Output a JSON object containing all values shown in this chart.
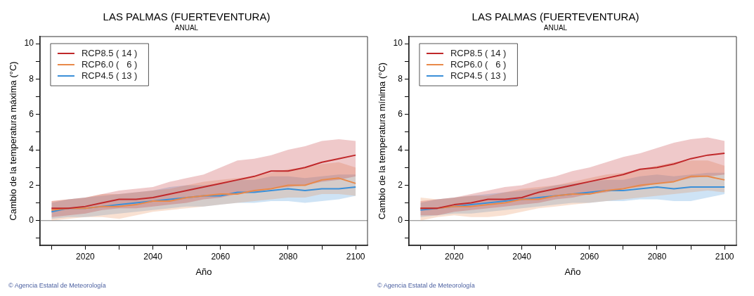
{
  "chart_data": [
    {
      "type": "line",
      "title": "LAS PALMAS (FUERTEVENTURA)",
      "subtitle": "ANUAL",
      "xlabel": "Año",
      "ylabel": "Cambio de la temperatura máxima (°C)",
      "x": [
        2010,
        2015,
        2020,
        2025,
        2030,
        2035,
        2040,
        2045,
        2050,
        2055,
        2060,
        2065,
        2070,
        2075,
        2080,
        2085,
        2090,
        2095,
        2100
      ],
      "series": [
        {
          "name": "RCP8.5 ( 14 )",
          "color": "#c0282a",
          "values": [
            0.7,
            0.7,
            0.8,
            1.0,
            1.2,
            1.2,
            1.3,
            1.5,
            1.7,
            1.9,
            2.1,
            2.3,
            2.5,
            2.8,
            2.8,
            3.0,
            3.3,
            3.5,
            3.7
          ],
          "lower": [
            0.2,
            0.3,
            0.4,
            0.6,
            0.7,
            0.7,
            0.8,
            0.9,
            1.0,
            1.2,
            1.3,
            1.5,
            1.6,
            1.8,
            1.9,
            2.0,
            2.2,
            2.3,
            2.5
          ],
          "upper": [
            1.1,
            1.2,
            1.3,
            1.5,
            1.7,
            1.8,
            1.9,
            2.2,
            2.4,
            2.6,
            3.0,
            3.4,
            3.5,
            3.7,
            4.0,
            4.2,
            4.5,
            4.6,
            4.5
          ]
        },
        {
          "name": "RCP6.0 (   6 )",
          "color": "#e8894a",
          "values": [
            0.6,
            0.7,
            0.7,
            0.8,
            0.8,
            0.9,
            1.1,
            1.1,
            1.3,
            1.4,
            1.5,
            1.5,
            1.7,
            1.8,
            2.0,
            2.0,
            2.3,
            2.4,
            2.1
          ],
          "lower": [
            0.0,
            0.1,
            0.2,
            0.2,
            0.1,
            0.3,
            0.5,
            0.6,
            0.7,
            0.8,
            0.9,
            1.0,
            1.1,
            1.2,
            1.3,
            1.3,
            1.5,
            1.5,
            1.4
          ],
          "upper": [
            1.1,
            1.2,
            1.3,
            1.5,
            1.5,
            1.6,
            1.7,
            1.8,
            2.0,
            2.2,
            2.3,
            2.4,
            2.5,
            2.7,
            2.9,
            3.0,
            3.2,
            3.3,
            3.0
          ]
        },
        {
          "name": "RCP4.5 ( 13 )",
          "color": "#3a8fd8",
          "values": [
            0.5,
            0.7,
            0.7,
            0.8,
            0.9,
            1.0,
            1.1,
            1.2,
            1.3,
            1.4,
            1.4,
            1.6,
            1.6,
            1.7,
            1.8,
            1.7,
            1.8,
            1.8,
            1.9
          ],
          "lower": [
            0.1,
            0.2,
            0.2,
            0.3,
            0.4,
            0.5,
            0.6,
            0.7,
            0.8,
            0.8,
            0.9,
            1.0,
            1.0,
            1.1,
            1.1,
            1.0,
            1.1,
            1.2,
            1.4
          ],
          "upper": [
            1.0,
            1.2,
            1.3,
            1.4,
            1.5,
            1.6,
            1.7,
            1.9,
            2.0,
            2.0,
            2.1,
            2.3,
            2.3,
            2.5,
            2.5,
            2.4,
            2.5,
            2.6,
            2.6
          ]
        }
      ],
      "xlim": [
        2006.6,
        2103.5
      ],
      "xticks": [
        {
          "value": 2010,
          "label": null
        },
        2020,
        {
          "value": 2030,
          "label": null
        },
        2040,
        {
          "value": 2050,
          "label": null
        },
        2060,
        {
          "value": 2070,
          "label": null
        },
        2080,
        {
          "value": 2090,
          "label": null
        },
        2100
      ],
      "ylim": [
        -1.4,
        10.4
      ],
      "yticks": [
        {
          "value": -1,
          "label": null
        },
        0,
        {
          "value": 1,
          "label": null
        },
        2,
        {
          "value": 3,
          "label": null
        },
        4,
        {
          "value": 5,
          "label": null
        },
        6,
        {
          "value": 7,
          "label": null
        },
        8,
        {
          "value": 9,
          "label": null
        },
        10
      ],
      "ref_lines": [
        {
          "axis": "y",
          "value": 0,
          "color": "#808080"
        }
      ],
      "legend": "top left",
      "grid": false,
      "marker": "none",
      "line_style": "solid",
      "annotations": [
        "© Agencia Estatal de Meteorología"
      ]
    },
    {
      "type": "line",
      "title": "LAS PALMAS (FUERTEVENTURA)",
      "subtitle": "ANUAL",
      "xlabel": "Año",
      "ylabel": "Cambio de la temperatura mínima (°C)",
      "x": [
        2010,
        2015,
        2020,
        2025,
        2030,
        2035,
        2040,
        2045,
        2050,
        2055,
        2060,
        2065,
        2070,
        2075,
        2080,
        2085,
        2090,
        2095,
        2100
      ],
      "series": [
        {
          "name": "RCP8.5 ( 14 )",
          "color": "#c0282a",
          "values": [
            0.7,
            0.7,
            0.9,
            1.0,
            1.2,
            1.2,
            1.3,
            1.6,
            1.8,
            2.0,
            2.2,
            2.4,
            2.6,
            2.9,
            3.0,
            3.2,
            3.5,
            3.7,
            3.8
          ],
          "lower": [
            0.3,
            0.3,
            0.5,
            0.6,
            0.7,
            0.8,
            0.9,
            1.0,
            1.2,
            1.3,
            1.5,
            1.6,
            1.8,
            1.9,
            2.1,
            2.2,
            2.4,
            2.5,
            2.6
          ],
          "upper": [
            1.1,
            1.2,
            1.3,
            1.5,
            1.7,
            1.9,
            2.0,
            2.3,
            2.5,
            2.8,
            3.0,
            3.3,
            3.6,
            3.8,
            4.1,
            4.4,
            4.6,
            4.7,
            4.5
          ]
        },
        {
          "name": "RCP6.0 (   6 )",
          "color": "#e8894a",
          "values": [
            0.7,
            0.7,
            0.8,
            0.8,
            0.9,
            1.0,
            1.2,
            1.2,
            1.4,
            1.5,
            1.5,
            1.7,
            1.8,
            2.0,
            2.1,
            2.2,
            2.5,
            2.5,
            2.3
          ],
          "lower": [
            0.0,
            0.2,
            0.3,
            0.2,
            0.2,
            0.3,
            0.5,
            0.7,
            0.8,
            0.9,
            1.0,
            1.1,
            1.2,
            1.3,
            1.4,
            1.5,
            1.6,
            1.7,
            1.6
          ],
          "upper": [
            1.3,
            1.2,
            1.3,
            1.4,
            1.4,
            1.6,
            1.8,
            1.9,
            2.0,
            2.2,
            2.4,
            2.6,
            2.7,
            2.9,
            3.1,
            3.3,
            3.4,
            3.4,
            3.1
          ]
        },
        {
          "name": "RCP4.5 ( 13 )",
          "color": "#3a8fd8",
          "values": [
            0.6,
            0.7,
            0.8,
            0.9,
            1.0,
            1.1,
            1.2,
            1.3,
            1.4,
            1.5,
            1.6,
            1.7,
            1.7,
            1.8,
            1.9,
            1.8,
            1.9,
            1.9,
            1.9
          ],
          "lower": [
            0.2,
            0.3,
            0.4,
            0.4,
            0.5,
            0.6,
            0.7,
            0.8,
            0.9,
            1.0,
            1.0,
            1.1,
            1.1,
            1.2,
            1.2,
            1.1,
            1.1,
            1.3,
            1.5
          ],
          "upper": [
            1.0,
            1.2,
            1.3,
            1.4,
            1.5,
            1.6,
            1.7,
            1.8,
            2.0,
            2.1,
            2.2,
            2.3,
            2.3,
            2.5,
            2.6,
            2.5,
            2.6,
            2.7,
            2.7
          ]
        }
      ],
      "xlim": [
        2006.6,
        2103.5
      ],
      "xticks": [
        {
          "value": 2010,
          "label": null
        },
        2020,
        {
          "value": 2030,
          "label": null
        },
        2040,
        {
          "value": 2050,
          "label": null
        },
        2060,
        {
          "value": 2070,
          "label": null
        },
        2080,
        {
          "value": 2090,
          "label": null
        },
        2100
      ],
      "ylim": [
        -1.4,
        10.4
      ],
      "yticks": [
        {
          "value": -1,
          "label": null
        },
        0,
        {
          "value": 1,
          "label": null
        },
        2,
        {
          "value": 3,
          "label": null
        },
        4,
        {
          "value": 5,
          "label": null
        },
        6,
        {
          "value": 7,
          "label": null
        },
        8,
        {
          "value": 9,
          "label": null
        },
        10
      ],
      "ref_lines": [
        {
          "axis": "y",
          "value": 0,
          "color": "#808080"
        }
      ],
      "legend": "top left",
      "grid": false,
      "marker": "none",
      "line_style": "solid",
      "annotations": [
        "© Agencia Estatal de Meteorología"
      ]
    }
  ]
}
